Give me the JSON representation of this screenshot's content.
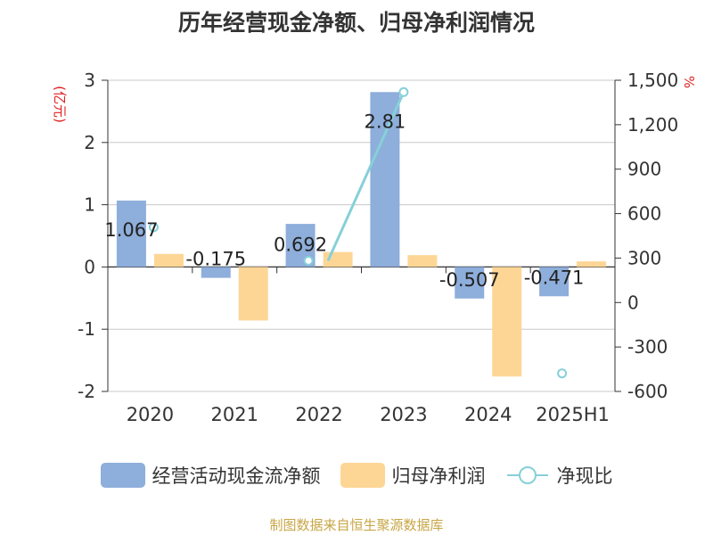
{
  "chart_data": {
    "type": "bar",
    "title": "历年经营现金净额、归母净利润情况",
    "categories": [
      "2020",
      "2021",
      "2022",
      "2023",
      "2024",
      "2025H1"
    ],
    "left_unit": "(亿元)",
    "right_unit": "%",
    "left_axis": {
      "ylim": [
        -2,
        3
      ],
      "ticks": [
        3,
        2,
        1,
        0,
        -1,
        -2
      ],
      "tick_labels": [
        "3",
        "2",
        "1",
        "0",
        "-1",
        "-2"
      ]
    },
    "right_axis": {
      "ylim": [
        -600,
        1500
      ],
      "ticks": [
        1500,
        1200,
        900,
        600,
        300,
        0,
        -300,
        -600
      ],
      "tick_labels": [
        "1,500",
        "1,200",
        "900",
        "600",
        "300",
        "0",
        "-300",
        "-600"
      ]
    },
    "grid": true,
    "legend_position": "bottom",
    "series": [
      {
        "name": "经营活动现金流净额",
        "type": "bar",
        "axis": "left",
        "color": "#8eaedb",
        "values": [
          1.067,
          -0.175,
          0.692,
          2.81,
          -0.507,
          -0.471
        ],
        "labels": [
          "1.067",
          "-0.175",
          "0.692",
          "2.81",
          "-0.507",
          "-0.471"
        ]
      },
      {
        "name": "归母净利润",
        "type": "bar",
        "axis": "left",
        "color": "#fdd696",
        "values": [
          0.21,
          -0.86,
          0.24,
          0.19,
          -1.76,
          0.09
        ]
      },
      {
        "name": "净现比",
        "type": "line",
        "axis": "right",
        "color": "#86d0d8",
        "values": [
          508,
          null,
          282,
          1420,
          null,
          -478
        ]
      }
    ]
  },
  "source": "制图数据来自恒生聚源数据库"
}
